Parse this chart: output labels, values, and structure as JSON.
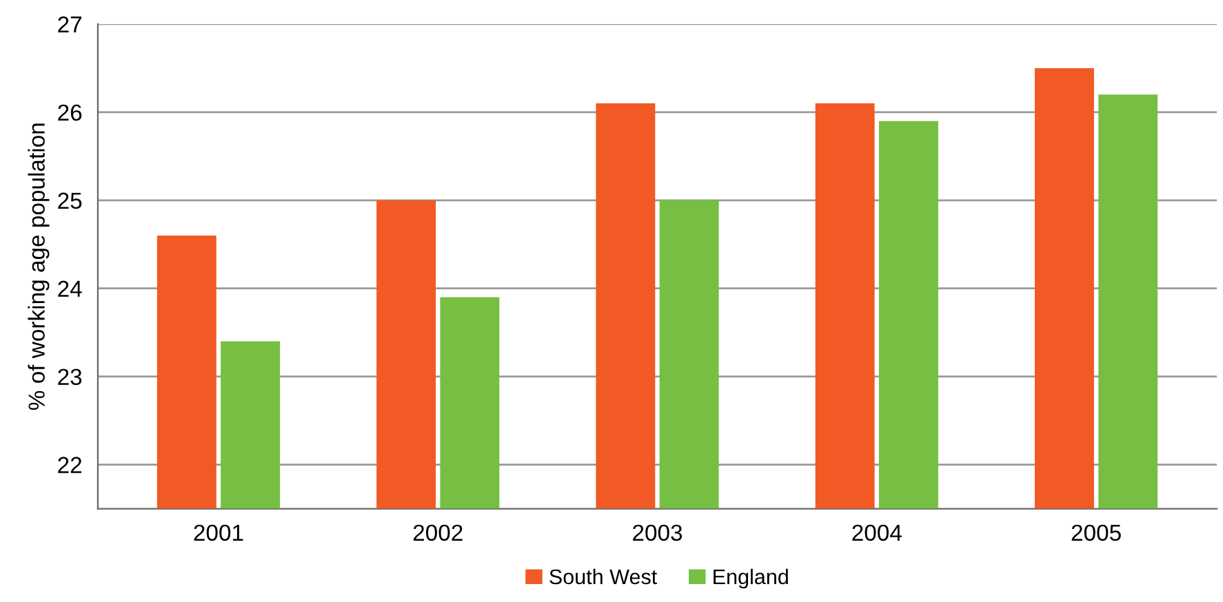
{
  "chart_data": {
    "type": "bar",
    "ylabel": "% of working age population",
    "categories": [
      "2001",
      "2002",
      "2003",
      "2004",
      "2005"
    ],
    "series": [
      {
        "name": "South West",
        "color": "#f15a24",
        "values": [
          24.6,
          25.0,
          26.1,
          26.1,
          26.5
        ]
      },
      {
        "name": "England",
        "color": "#76bf43",
        "values": [
          23.4,
          23.9,
          25.0,
          25.9,
          26.2
        ]
      }
    ],
    "ylim": [
      21.5,
      27
    ],
    "yticks": [
      22,
      23,
      24,
      25,
      26,
      27
    ],
    "grid": "y",
    "legend": "bottom"
  }
}
